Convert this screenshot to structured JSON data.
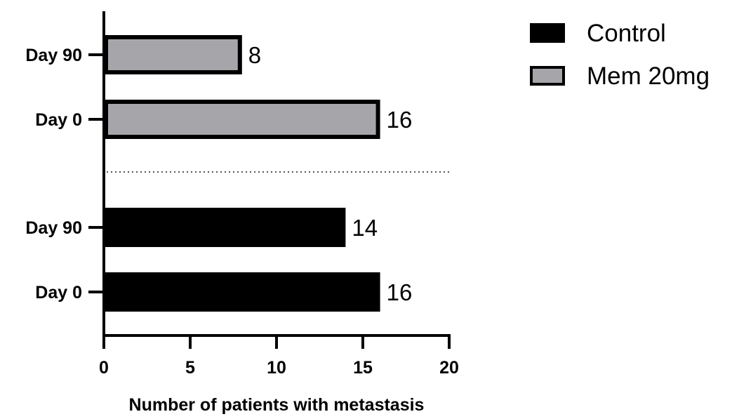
{
  "chart_data": {
    "type": "bar",
    "orientation": "horizontal",
    "xlabel": "Number of patients with metastasis",
    "ylabel": "",
    "xlim": [
      0,
      20
    ],
    "xticks": [
      0,
      5,
      10,
      15,
      20
    ],
    "grid": false,
    "legend_position": "top-right",
    "groups": [
      {
        "series": "Mem 20mg",
        "categories": [
          "Day 90",
          "Day 0"
        ],
        "values": [
          8,
          16
        ]
      },
      {
        "series": "Control",
        "categories": [
          "Day 90",
          "Day 0"
        ],
        "values": [
          14,
          16
        ]
      }
    ],
    "series": [
      {
        "name": "Control",
        "color": "#000000"
      },
      {
        "name": "Mem 20mg",
        "color": "#a6a6aa"
      }
    ],
    "group_separator": "dotted"
  }
}
